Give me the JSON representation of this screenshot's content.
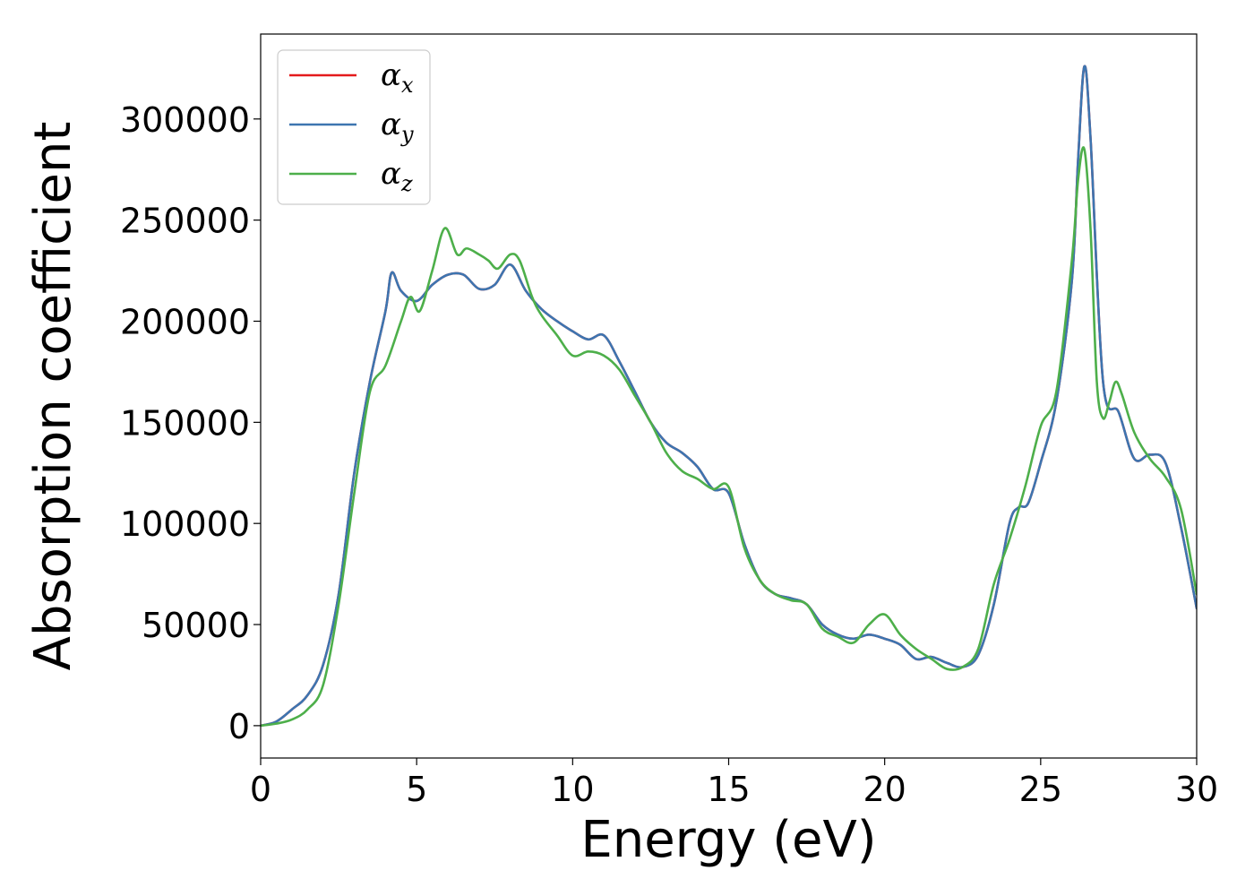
{
  "chart_data": {
    "type": "line",
    "xlabel": "Energy (eV)",
    "ylabel": "Absorption coefficient",
    "xlim": [
      0,
      30
    ],
    "ylim": [
      -16000,
      342000
    ],
    "xticks": [
      0,
      5,
      10,
      15,
      20,
      25,
      30
    ],
    "xtick_labels": [
      "0",
      "5",
      "10",
      "15",
      "20",
      "25",
      "30"
    ],
    "yticks": [
      0,
      50000,
      100000,
      150000,
      200000,
      250000,
      300000
    ],
    "ytick_labels": [
      "0",
      "50000",
      "100000",
      "150000",
      "200000",
      "250000",
      "300000"
    ],
    "grid": false,
    "legend_position": "top-left",
    "series": [
      {
        "name": "α_x",
        "name_base": "α",
        "name_sub": "x",
        "color": "#e41a1c",
        "x": [
          0,
          0.5,
          1,
          1.5,
          2,
          2.5,
          3,
          3.5,
          4,
          4.2,
          4.5,
          5,
          5.5,
          6,
          6.5,
          7,
          7.5,
          8,
          8.5,
          9,
          9.5,
          10,
          10.5,
          11,
          11.5,
          12,
          12.5,
          13,
          13.5,
          14,
          14.5,
          15,
          15.5,
          16,
          16.5,
          17,
          17.5,
          18,
          18.5,
          19,
          19.5,
          20,
          20.5,
          21,
          21.5,
          22,
          22.5,
          23,
          23.5,
          24,
          24.3,
          24.6,
          25,
          25.5,
          26,
          26.2,
          26.4,
          26.6,
          27,
          27.5,
          28,
          28.5,
          29,
          29.5,
          30
        ],
        "y": [
          0,
          2000,
          8000,
          15000,
          30000,
          65000,
          125000,
          170000,
          205000,
          224000,
          215000,
          210000,
          218000,
          223000,
          223000,
          216000,
          218000,
          228000,
          215000,
          206000,
          200000,
          195000,
          191000,
          193000,
          180000,
          165000,
          150000,
          140000,
          135000,
          128000,
          117000,
          115000,
          90000,
          72000,
          65000,
          63000,
          60000,
          50000,
          45000,
          43000,
          45000,
          43000,
          40000,
          33000,
          34000,
          31000,
          29000,
          35000,
          60000,
          100000,
          108000,
          110000,
          130000,
          160000,
          220000,
          280000,
          326000,
          290000,
          170000,
          155000,
          132000,
          134000,
          130000,
          98000,
          58000
        ]
      },
      {
        "name": "α_y",
        "name_base": "α",
        "name_sub": "y",
        "color": "#3d75b0",
        "x": [
          0,
          0.5,
          1,
          1.5,
          2,
          2.5,
          3,
          3.5,
          4,
          4.2,
          4.5,
          5,
          5.5,
          6,
          6.5,
          7,
          7.5,
          8,
          8.5,
          9,
          9.5,
          10,
          10.5,
          11,
          11.5,
          12,
          12.5,
          13,
          13.5,
          14,
          14.5,
          15,
          15.5,
          16,
          16.5,
          17,
          17.5,
          18,
          18.5,
          19,
          19.5,
          20,
          20.5,
          21,
          21.5,
          22,
          22.5,
          23,
          23.5,
          24,
          24.3,
          24.6,
          25,
          25.5,
          26,
          26.2,
          26.4,
          26.6,
          27,
          27.5,
          28,
          28.5,
          29,
          29.5,
          30
        ],
        "y": [
          0,
          2000,
          8000,
          15000,
          30000,
          65000,
          125000,
          170000,
          205000,
          224000,
          215000,
          210000,
          218000,
          223000,
          223000,
          216000,
          218000,
          228000,
          215000,
          206000,
          200000,
          195000,
          191000,
          193000,
          180000,
          165000,
          150000,
          140000,
          135000,
          128000,
          117000,
          115000,
          90000,
          72000,
          65000,
          63000,
          60000,
          50000,
          45000,
          43000,
          45000,
          43000,
          40000,
          33000,
          34000,
          31000,
          29000,
          35000,
          60000,
          100000,
          108000,
          110000,
          130000,
          160000,
          220000,
          280000,
          326000,
          290000,
          170000,
          155000,
          132000,
          134000,
          130000,
          98000,
          58000
        ]
      },
      {
        "name": "α_z",
        "name_base": "α",
        "name_sub": "z",
        "color": "#4daf4a",
        "x": [
          0,
          0.5,
          1,
          1.5,
          2,
          2.5,
          3,
          3.5,
          4,
          4.5,
          4.8,
          5.1,
          5.5,
          5.9,
          6.3,
          6.6,
          7,
          7.3,
          7.6,
          8,
          8.3,
          8.7,
          9,
          9.5,
          10,
          10.5,
          11,
          11.5,
          12,
          12.5,
          13,
          13.5,
          14,
          14.5,
          15,
          15.5,
          16,
          16.5,
          17,
          17.5,
          18,
          18.5,
          19,
          19.5,
          20,
          20.5,
          21,
          21.5,
          22,
          22.5,
          23,
          23.5,
          24,
          24.5,
          25,
          25.5,
          26,
          26.2,
          26.4,
          26.6,
          26.8,
          27,
          27.2,
          27.4,
          27.6,
          28,
          28.5,
          29,
          29.5,
          30
        ],
        "y": [
          0,
          1000,
          3000,
          8000,
          20000,
          60000,
          115000,
          165000,
          178000,
          200000,
          212000,
          205000,
          225000,
          246000,
          233000,
          236000,
          233000,
          230000,
          226000,
          233000,
          230000,
          212000,
          203000,
          193000,
          183000,
          185000,
          183000,
          176000,
          163000,
          150000,
          135000,
          126000,
          122000,
          117000,
          118000,
          88000,
          72000,
          65000,
          62000,
          60000,
          48000,
          44000,
          41000,
          50000,
          55000,
          45000,
          38000,
          33000,
          28000,
          29000,
          38000,
          70000,
          92000,
          118000,
          148000,
          165000,
          230000,
          270000,
          285000,
          245000,
          170000,
          152000,
          160000,
          170000,
          164000,
          145000,
          132000,
          123000,
          107000,
          65000
        ]
      }
    ]
  }
}
